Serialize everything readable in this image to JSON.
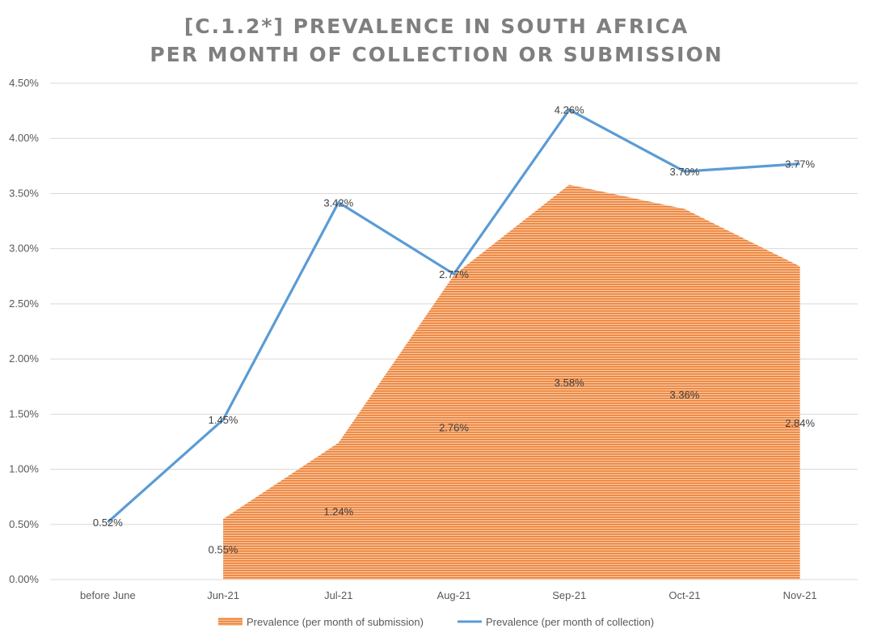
{
  "chart_data": {
    "type": "line+area",
    "title_lines": [
      "[C.1.2*] PREVALENCE IN SOUTH AFRICA",
      "PER MONTH OF COLLECTION OR SUBMISSION"
    ],
    "categories": [
      "before June",
      "Jun-21",
      "Jul-21",
      "Aug-21",
      "Sep-21",
      "Oct-21",
      "Nov-21"
    ],
    "ylim": [
      0,
      4.5
    ],
    "yticks": [
      0,
      0.5,
      1.0,
      1.5,
      2.0,
      2.5,
      3.0,
      3.5,
      4.0,
      4.5
    ],
    "ytick_labels": [
      "0.00%",
      "0.50%",
      "1.00%",
      "1.50%",
      "2.00%",
      "2.50%",
      "3.00%",
      "3.50%",
      "4.00%",
      "4.50%"
    ],
    "grid": true,
    "legend_position": "bottom",
    "series": [
      {
        "name": "Prevalence (per month of submission)",
        "kind": "area",
        "color": "#ed7d31",
        "values": [
          null,
          0.55,
          1.24,
          2.76,
          3.58,
          3.36,
          2.84
        ],
        "labels": [
          "",
          "0.55%",
          "1.24%",
          "2.76%",
          "3.58%",
          "3.36%",
          "2.84%"
        ]
      },
      {
        "name": "Prevalence (per month of collection)",
        "kind": "line",
        "color": "#5b9bd5",
        "values": [
          0.52,
          1.45,
          3.42,
          2.77,
          4.26,
          3.7,
          3.77
        ],
        "labels": [
          "0.52%",
          "1.45%",
          "3.42%",
          "2.77%",
          "4.26%",
          "3.70%",
          "3.77%"
        ]
      }
    ]
  }
}
